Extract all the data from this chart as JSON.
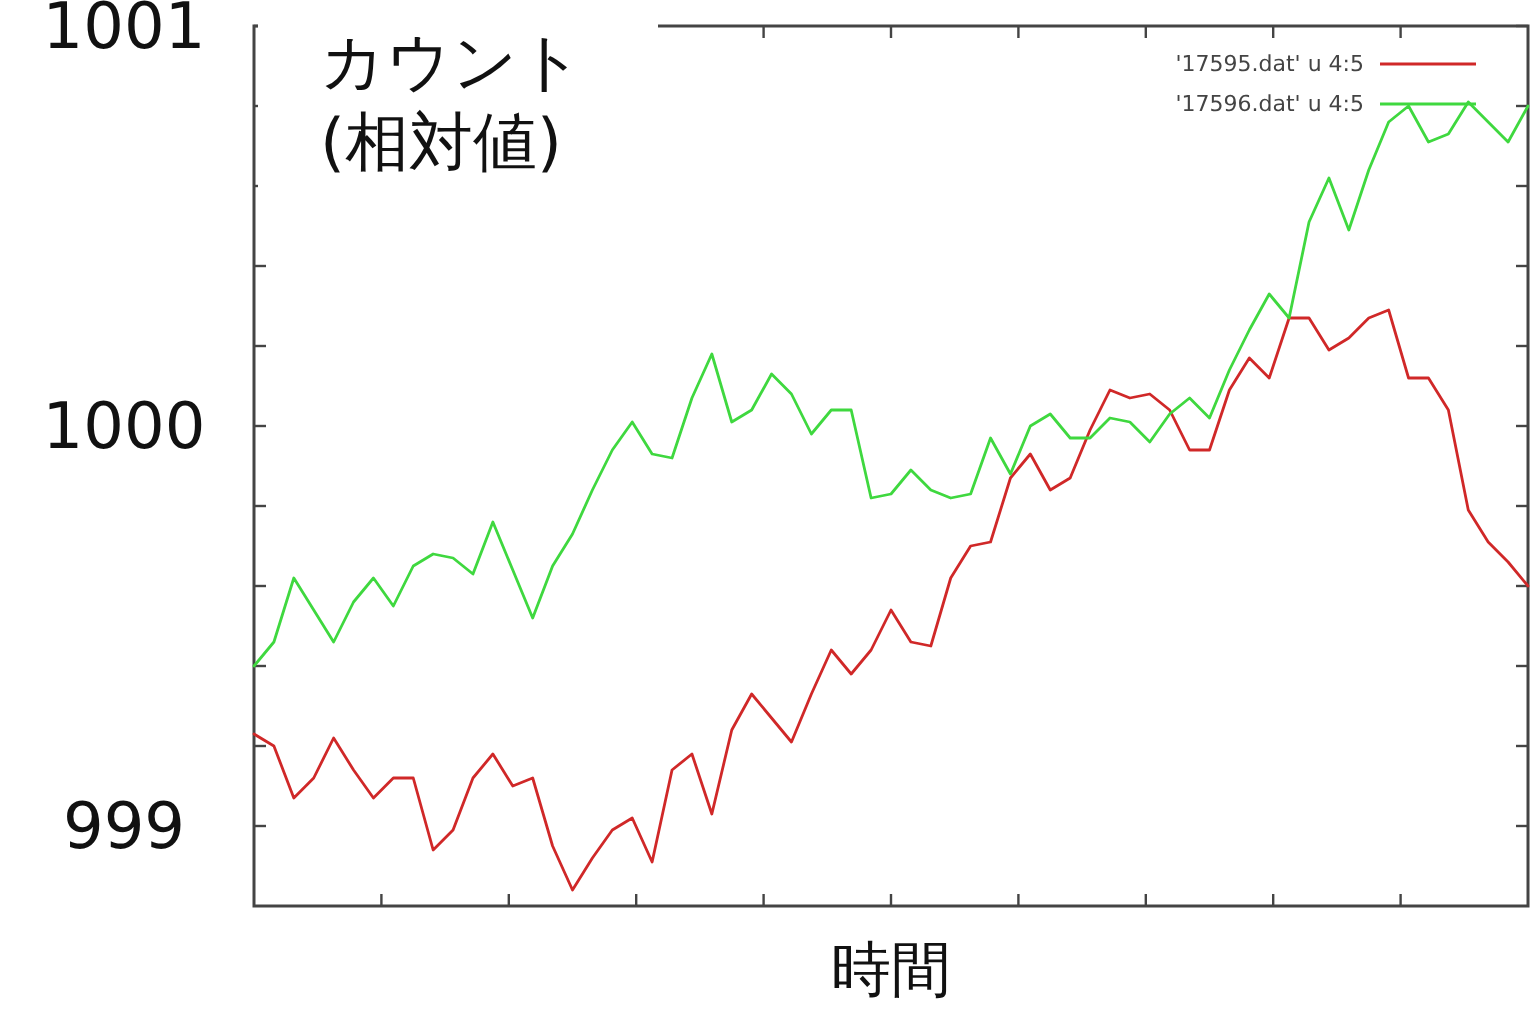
{
  "chart_data": {
    "type": "line",
    "xlabel": "時間",
    "ylabel": "カウント\n(相対値)",
    "categories": [
      null,
      null,
      null,
      null,
      null,
      null,
      null,
      null,
      null,
      null,
      null,
      null,
      null,
      null,
      null,
      null,
      null,
      null,
      null,
      null,
      null,
      null,
      null,
      null,
      null,
      null,
      null,
      null,
      null,
      null,
      null,
      null,
      null,
      null,
      null,
      null,
      null,
      null,
      null,
      null,
      null,
      null,
      null,
      null,
      null,
      null,
      null,
      null,
      null,
      null,
      null,
      null,
      null,
      null,
      null,
      null,
      null,
      null,
      null,
      null,
      null,
      null,
      null,
      null,
      null
    ],
    "series": [
      {
        "name": "'17595.dat' u 4:5",
        "color": "#d02828",
        "values": [
          999.23,
          999.2,
          999.07,
          999.12,
          999.22,
          999.14,
          999.07,
          999.12,
          999.12,
          998.94,
          998.99,
          999.12,
          999.18,
          999.1,
          999.12,
          998.95,
          998.84,
          998.92,
          998.99,
          999.02,
          998.91,
          999.14,
          999.18,
          999.03,
          999.24,
          999.33,
          999.27,
          999.21,
          999.33,
          999.44,
          999.38,
          999.44,
          999.54,
          999.46,
          999.45,
          999.62,
          999.7,
          999.71,
          999.87,
          999.93,
          999.84,
          999.87,
          999.99,
          1000.09,
          1000.07,
          1000.08,
          1000.04,
          999.94,
          999.94,
          1000.09,
          1000.17,
          1000.12,
          1000.27,
          1000.27,
          1000.19,
          1000.22,
          1000.27,
          1000.29,
          1000.12,
          1000.12,
          1000.04,
          999.79,
          999.71,
          999.66,
          999.6
        ]
      },
      {
        "name": "'17596.dat' u 4:5",
        "color": "#3fd83f",
        "values": [
          999.4,
          999.46,
          999.62,
          999.54,
          999.46,
          999.56,
          999.62,
          999.55,
          999.65,
          999.68,
          999.67,
          999.63,
          999.76,
          999.64,
          999.52,
          999.65,
          999.73,
          999.84,
          999.94,
          1000.01,
          999.93,
          999.92,
          1000.07,
          1000.18,
          1000.01,
          1000.04,
          1000.13,
          1000.08,
          999.98,
          1000.04,
          1000.04,
          999.82,
          999.83,
          999.89,
          999.84,
          999.82,
          999.83,
          999.97,
          999.88,
          1000.0,
          1000.03,
          999.97,
          999.97,
          1000.02,
          1000.01,
          999.96,
          1000.03,
          1000.07,
          1000.02,
          1000.14,
          1000.24,
          1000.33,
          1000.27,
          1000.51,
          1000.62,
          1000.49,
          1000.64,
          1000.76,
          1000.8,
          1000.71,
          1000.73,
          1000.81,
          1000.76,
          1000.71,
          1000.8
        ]
      }
    ],
    "ylim": [
      998.8,
      1001
    ],
    "yticks": [
      {
        "value": 999,
        "label": "999"
      },
      {
        "value": 999.2,
        "label": null
      },
      {
        "value": 999.4,
        "label": null
      },
      {
        "value": 999.6,
        "label": null
      },
      {
        "value": 999.8,
        "label": null
      },
      {
        "value": 1000,
        "label": "1000"
      },
      {
        "value": 1000.2,
        "label": null
      },
      {
        "value": 1000.4,
        "label": null
      },
      {
        "value": 1000.6,
        "label": null
      },
      {
        "value": 1000.8,
        "label": null
      },
      {
        "value": 1001,
        "label": "1001"
      }
    ],
    "legend": "top right",
    "grid": false,
    "marker": "none",
    "line_style": "solid"
  }
}
